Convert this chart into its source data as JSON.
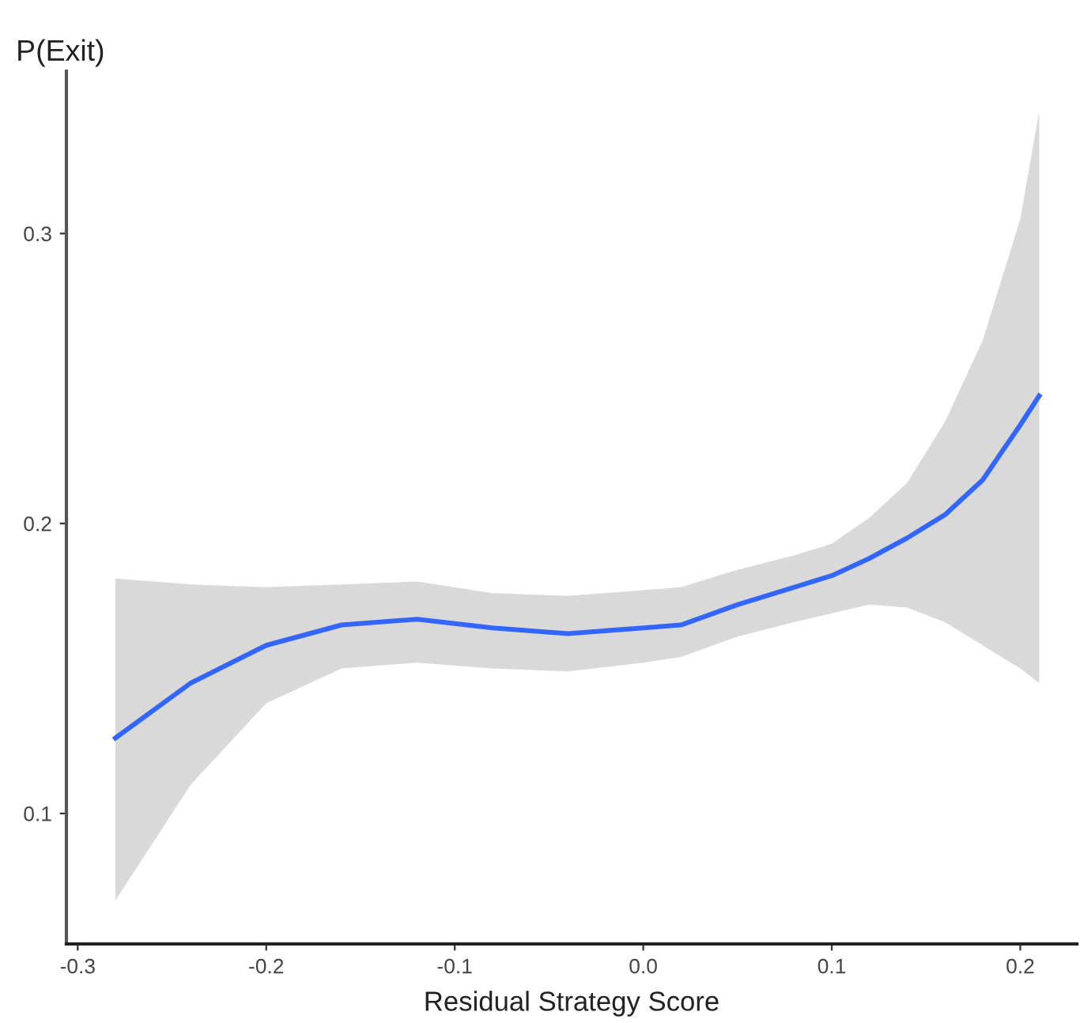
{
  "chart_data": {
    "type": "line",
    "ylabel": "P(Exit)",
    "xlabel": "Residual Strategy Score",
    "x": [
      -0.28,
      -0.24,
      -0.2,
      -0.16,
      -0.12,
      -0.08,
      -0.04,
      0,
      0.02,
      0.05,
      0.08,
      0.1,
      0.12,
      0.14,
      0.16,
      0.18,
      0.2,
      0.21
    ],
    "series": [
      {
        "color": "#3366ff",
        "values": [
          0.126,
          0.145,
          0.158,
          0.165,
          0.167,
          0.164,
          0.162,
          0.164,
          0.165,
          0.172,
          0.178,
          0.182,
          0.188,
          0.195,
          0.203,
          0.215,
          0.234,
          0.244
        ],
        "upper": [
          0.181,
          0.179,
          0.178,
          0.179,
          0.18,
          0.176,
          0.175,
          0.177,
          0.178,
          0.184,
          0.189,
          0.193,
          0.202,
          0.214,
          0.235,
          0.263,
          0.305,
          0.342
        ],
        "lower": [
          0.07,
          0.11,
          0.138,
          0.15,
          0.152,
          0.15,
          0.149,
          0.152,
          0.154,
          0.161,
          0.166,
          0.169,
          0.172,
          0.171,
          0.166,
          0.158,
          0.15,
          0.145
        ]
      }
    ],
    "xlim": [
      -0.306,
      0.23
    ],
    "ylim": [
      0.055,
      0.356
    ],
    "xticks": [
      -0.3,
      -0.2,
      -0.1,
      {
        "value": 0,
        "label": "0.0"
      },
      0.1,
      0.2
    ],
    "yticks": [
      0.1,
      0.2,
      0.3
    ],
    "grid": false,
    "marker": "none",
    "line_style": "solid"
  }
}
